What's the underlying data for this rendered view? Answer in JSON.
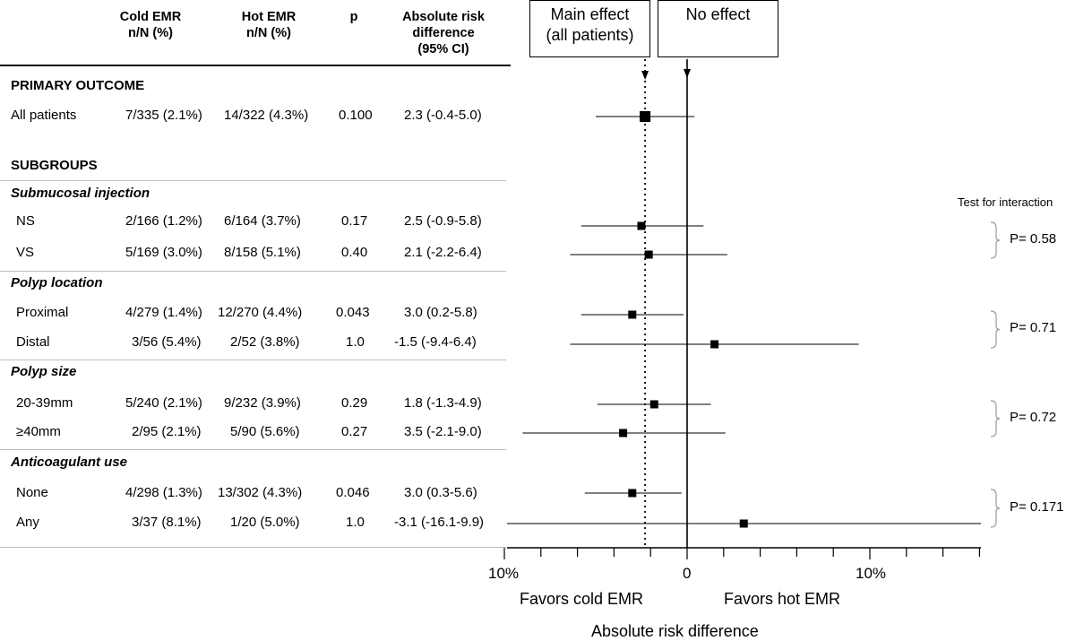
{
  "chart_data": {
    "type": "forest",
    "columns": {
      "cold": "Cold EMR\nn/N (%)",
      "hot": "Hot EMR\nn/N (%)",
      "p": "p",
      "ard": "Absolute risk\ndifference\n(95% CI)"
    },
    "sections": {
      "primary": "PRIMARY OUTCOME",
      "subgroups": "SUBGROUPS"
    },
    "groups": [
      "Submucosal injection",
      "Polyp location",
      "Polyp size",
      "Anticoagulant use"
    ],
    "rows": [
      {
        "label": "All patients",
        "cold": "7/335 (2.1%)",
        "hot": "14/322 (4.3%)",
        "p": "0.100",
        "ard": "2.3 (-0.4-5.0)",
        "est": 2.3,
        "lo": -0.4,
        "hi": 5.0
      },
      {
        "label": "NS",
        "cold": "2/166 (1.2%)",
        "hot": "6/164 (3.7%)",
        "p": "0.17",
        "ard": "2.5 (-0.9-5.8)",
        "est": 2.5,
        "lo": -0.9,
        "hi": 5.8
      },
      {
        "label": "VS",
        "cold": "5/169 (3.0%)",
        "hot": "8/158 (5.1%)",
        "p": "0.40",
        "ard": "2.1 (-2.2-6.4)",
        "est": 2.1,
        "lo": -2.2,
        "hi": 6.4
      },
      {
        "label": "Proximal",
        "cold": "4/279 (1.4%)",
        "hot": "12/270 (4.4%)",
        "p": "0.043",
        "ard": "3.0 (0.2-5.8)",
        "est": 3.0,
        "lo": 0.2,
        "hi": 5.8
      },
      {
        "label": "Distal",
        "cold": "3/56 (5.4%)",
        "hot": "2/52 (3.8%)",
        "p": "1.0",
        "ard": "-1.5 (-9.4-6.4)",
        "est": -1.5,
        "lo": -9.4,
        "hi": 6.4
      },
      {
        "label": "20-39mm",
        "cold": "5/240 (2.1%)",
        "hot": "9/232 (3.9%)",
        "p": "0.29",
        "ard": "1.8 (-1.3-4.9)",
        "est": 1.8,
        "lo": -1.3,
        "hi": 4.9
      },
      {
        "label": "≥40mm",
        "cold": "2/95 (2.1%)",
        "hot": "5/90 (5.6%)",
        "p": "0.27",
        "ard": "3.5 (-2.1-9.0)",
        "est": 3.5,
        "lo": -2.1,
        "hi": 9.0
      },
      {
        "label": "None",
        "cold": "4/298 (1.3%)",
        "hot": "13/302 (4.3%)",
        "p": "0.046",
        "ard": "3.0 (0.3-5.6)",
        "est": 3.0,
        "lo": 0.3,
        "hi": 5.6
      },
      {
        "label": "Any",
        "cold": "3/37 (8.1%)",
        "hot": "1/20 (5.0%)",
        "p": "1.0",
        "ard": "-3.1 (-16.1-9.9)",
        "est": -3.1,
        "lo": -16.1,
        "hi": 9.9
      }
    ],
    "axis": {
      "label": "Absolute risk difference",
      "ticks": [
        "10%",
        "0",
        "10%"
      ],
      "tick_values": [
        10,
        0,
        -10
      ],
      "range": [
        10,
        -16
      ],
      "favors_left": "Favors cold EMR",
      "favors_right": "Favors hot EMR",
      "reversed": true
    },
    "reference_lines": {
      "main_effect": {
        "label": "Main effect\n(all patients)",
        "value": 2.3
      },
      "no_effect": {
        "label": "No effect",
        "value": 0
      }
    },
    "interaction": {
      "title": "Test for interaction",
      "values": [
        "P= 0.58",
        "P= 0.71",
        "P= 0.72",
        "P= 0.171"
      ]
    },
    "grid": false
  }
}
